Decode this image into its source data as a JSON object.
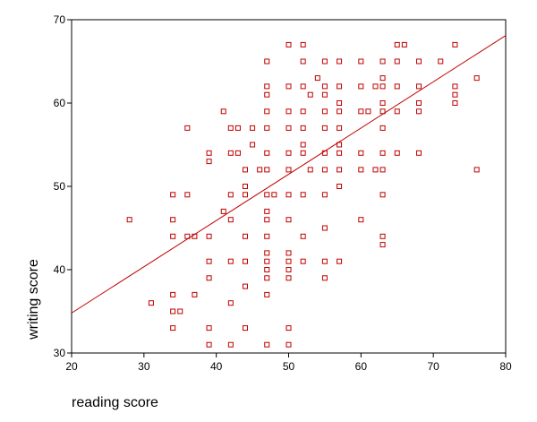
{
  "chart_data": {
    "type": "scatter",
    "title": "",
    "xlabel": "reading score",
    "ylabel": "writing score",
    "xlim": [
      20,
      80
    ],
    "ylim": [
      30,
      70
    ],
    "xticks": [
      "20",
      "30",
      "40",
      "50",
      "60",
      "70",
      "80"
    ],
    "yticks": [
      "30",
      "40",
      "50",
      "60",
      "70"
    ],
    "grid": false,
    "legend": "none",
    "colors": {
      "points": "#c00000",
      "line": "#c00000",
      "axes": "#000000"
    },
    "fit_line": {
      "x": [
        20,
        80
      ],
      "y": [
        34.8,
        68.1
      ]
    },
    "points": [
      [
        28,
        46
      ],
      [
        31,
        36
      ],
      [
        34,
        49
      ],
      [
        34,
        46
      ],
      [
        34,
        44
      ],
      [
        34,
        37
      ],
      [
        34,
        35
      ],
      [
        34,
        33
      ],
      [
        35,
        35
      ],
      [
        36,
        57
      ],
      [
        36,
        49
      ],
      [
        36,
        44
      ],
      [
        37,
        44
      ],
      [
        37,
        37
      ],
      [
        39,
        54
      ],
      [
        39,
        53
      ],
      [
        39,
        44
      ],
      [
        39,
        41
      ],
      [
        39,
        39
      ],
      [
        39,
        33
      ],
      [
        39,
        31
      ],
      [
        41,
        59
      ],
      [
        41,
        47
      ],
      [
        42,
        57
      ],
      [
        42,
        54
      ],
      [
        42,
        49
      ],
      [
        42,
        46
      ],
      [
        42,
        41
      ],
      [
        42,
        36
      ],
      [
        42,
        31
      ],
      [
        43,
        57
      ],
      [
        43,
        54
      ],
      [
        44,
        52
      ],
      [
        44,
        50
      ],
      [
        44,
        49
      ],
      [
        44,
        44
      ],
      [
        44,
        41
      ],
      [
        44,
        38
      ],
      [
        44,
        33
      ],
      [
        45,
        57
      ],
      [
        45,
        55
      ],
      [
        46,
        52
      ],
      [
        47,
        65
      ],
      [
        47,
        62
      ],
      [
        47,
        61
      ],
      [
        47,
        59
      ],
      [
        47,
        57
      ],
      [
        47,
        54
      ],
      [
        47,
        52
      ],
      [
        47,
        49
      ],
      [
        47,
        47
      ],
      [
        47,
        46
      ],
      [
        47,
        44
      ],
      [
        47,
        42
      ],
      [
        47,
        41
      ],
      [
        47,
        40
      ],
      [
        47,
        39
      ],
      [
        47,
        37
      ],
      [
        47,
        31
      ],
      [
        48,
        49
      ],
      [
        50,
        67
      ],
      [
        50,
        62
      ],
      [
        50,
        59
      ],
      [
        50,
        57
      ],
      [
        50,
        54
      ],
      [
        50,
        52
      ],
      [
        50,
        49
      ],
      [
        50,
        46
      ],
      [
        50,
        42
      ],
      [
        50,
        41
      ],
      [
        50,
        40
      ],
      [
        50,
        39
      ],
      [
        50,
        33
      ],
      [
        50,
        31
      ],
      [
        52,
        67
      ],
      [
        52,
        65
      ],
      [
        52,
        62
      ],
      [
        52,
        59
      ],
      [
        52,
        57
      ],
      [
        52,
        55
      ],
      [
        52,
        54
      ],
      [
        52,
        49
      ],
      [
        52,
        44
      ],
      [
        52,
        41
      ],
      [
        53,
        61
      ],
      [
        53,
        52
      ],
      [
        54,
        63
      ],
      [
        55,
        65
      ],
      [
        55,
        62
      ],
      [
        55,
        61
      ],
      [
        55,
        59
      ],
      [
        55,
        57
      ],
      [
        55,
        54
      ],
      [
        55,
        52
      ],
      [
        55,
        49
      ],
      [
        55,
        45
      ],
      [
        55,
        41
      ],
      [
        55,
        39
      ],
      [
        57,
        65
      ],
      [
        57,
        62
      ],
      [
        57,
        60
      ],
      [
        57,
        59
      ],
      [
        57,
        57
      ],
      [
        57,
        55
      ],
      [
        57,
        54
      ],
      [
        57,
        52
      ],
      [
        57,
        50
      ],
      [
        57,
        41
      ],
      [
        60,
        65
      ],
      [
        60,
        62
      ],
      [
        60,
        59
      ],
      [
        60,
        54
      ],
      [
        60,
        52
      ],
      [
        60,
        46
      ],
      [
        61,
        59
      ],
      [
        62,
        62
      ],
      [
        62,
        52
      ],
      [
        63,
        65
      ],
      [
        63,
        63
      ],
      [
        63,
        62
      ],
      [
        63,
        60
      ],
      [
        63,
        59
      ],
      [
        63,
        57
      ],
      [
        63,
        54
      ],
      [
        63,
        52
      ],
      [
        63,
        49
      ],
      [
        63,
        44
      ],
      [
        63,
        43
      ],
      [
        65,
        67
      ],
      [
        65,
        65
      ],
      [
        65,
        62
      ],
      [
        65,
        59
      ],
      [
        65,
        54
      ],
      [
        66,
        67
      ],
      [
        68,
        65
      ],
      [
        68,
        62
      ],
      [
        68,
        60
      ],
      [
        68,
        59
      ],
      [
        68,
        54
      ],
      [
        71,
        65
      ],
      [
        73,
        67
      ],
      [
        73,
        62
      ],
      [
        73,
        61
      ],
      [
        73,
        60
      ],
      [
        76,
        63
      ],
      [
        76,
        52
      ]
    ]
  }
}
